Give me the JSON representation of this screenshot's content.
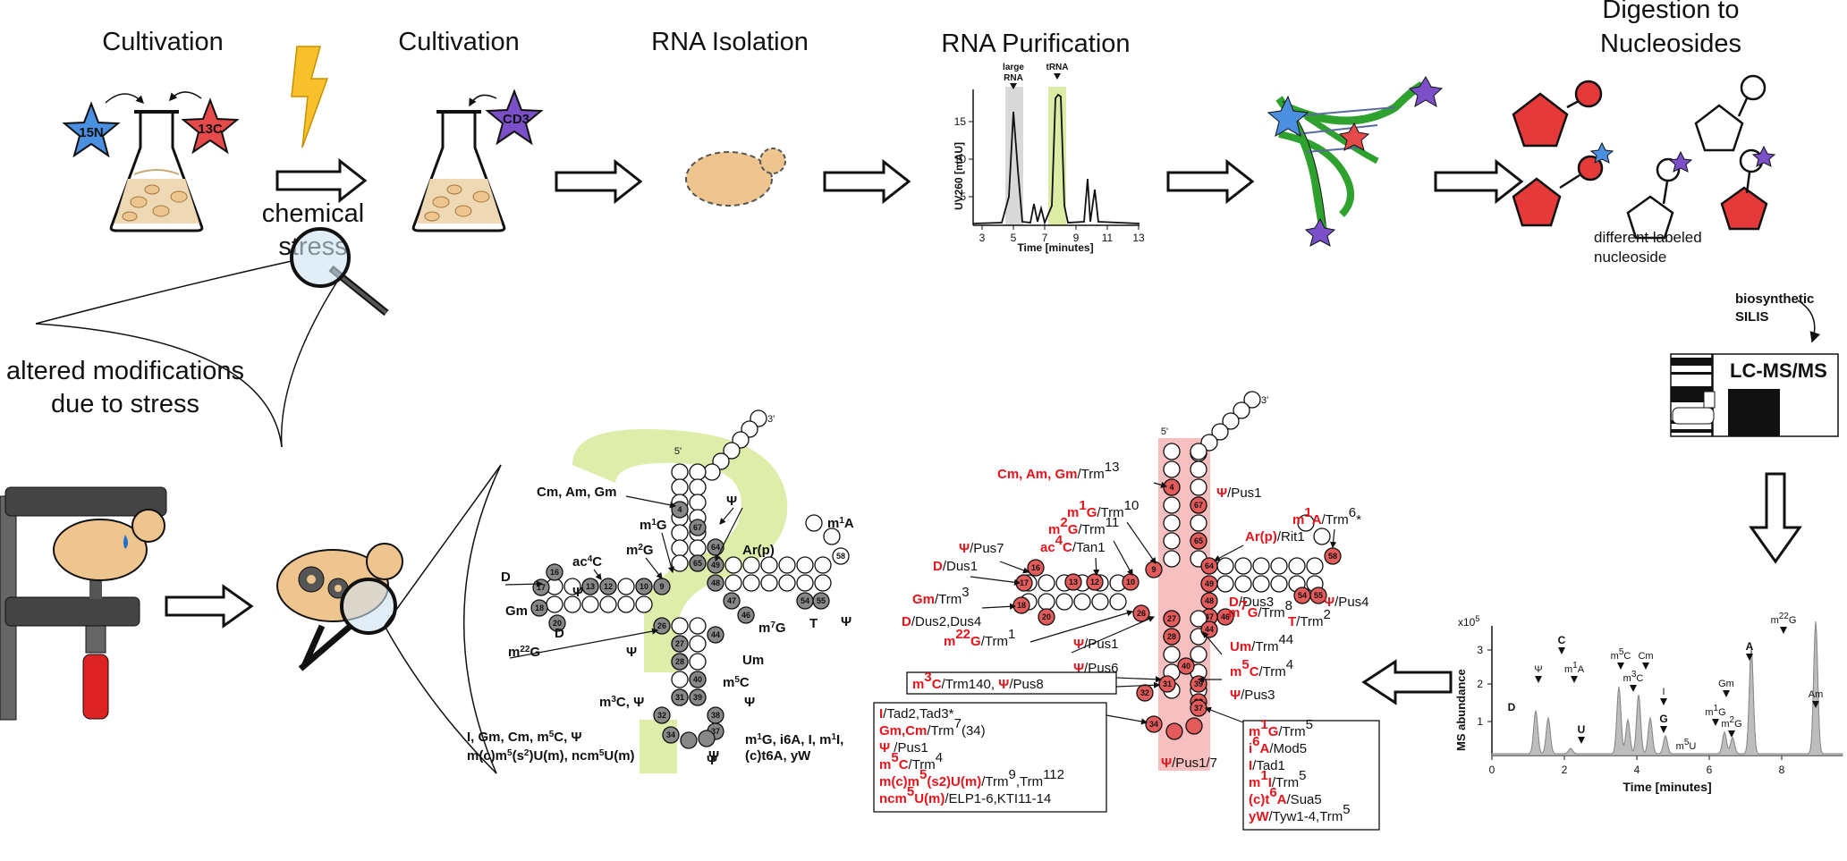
{
  "workflow": {
    "step1_title": "Cultivation",
    "step2_title": "Cultivation",
    "step3_title": "RNA Isolation",
    "step4_title": "RNA Purification",
    "step5_title_line1": "Digestion to",
    "step5_title_line2": "Nucleosides",
    "stress_line1": "chemical",
    "stress_line2": "stress",
    "isotope_n": "15N",
    "isotope_c": "13C",
    "isotope_cd3": "CD3",
    "altered_line1": "altered modifications",
    "altered_line2": "due to stress",
    "different_line1": "different labeled",
    "different_line2": "nucleoside",
    "silis_line1": "biosynthetic",
    "silis_line2": "SILIS",
    "lcms": "LC-MS/MS"
  },
  "purification_chart": {
    "ylabel": "UV260 [mAU]",
    "xlabel": "Time [minutes]",
    "xticks": [
      "3",
      "5",
      "7",
      "9",
      "11",
      "13"
    ],
    "yticks": [
      "5",
      "10",
      "15"
    ],
    "peak_large_label1": "large",
    "peak_large_label2": "RNA",
    "peak_trna_label": "tRNA"
  },
  "ms_chart": {
    "ylabel": "MS abundance",
    "xlabel": "Time [minutes]",
    "scale": "x10^5",
    "xticks": [
      "0",
      "2",
      "4",
      "6",
      "8"
    ],
    "yticks": [
      "1",
      "2",
      "3"
    ],
    "peaks": [
      "D",
      "Ψ",
      "C",
      "m1A",
      "U",
      "m5C",
      "m3C",
      "Cm",
      "I",
      "G",
      "m5U",
      "Gm",
      "m1G",
      "m2G",
      "A",
      "m22G",
      "Am"
    ]
  },
  "trna_left": {
    "labels": [
      "3'",
      "5'",
      "Cm, Am, Gm",
      "m1G",
      "m2G",
      "Ψ",
      "ac4C",
      "Ar(p)",
      "m1A",
      "D",
      "Gm",
      "Ψ",
      "D",
      "m7G",
      "T",
      "Ψ",
      "m22G",
      "Ψ",
      "Um",
      "m5C",
      "Ψ",
      "m3C, Ψ",
      "Ψ",
      "I, Gm, Cm, m5C, Ψ",
      "m(c)m5(s2)U(m), ncm5U(m)",
      "Ψ",
      "m1G, i6A, I, m1I,",
      "(c)t6A, yW"
    ],
    "numbers": [
      "4",
      "67",
      "65",
      "9",
      "10",
      "12",
      "13",
      "16",
      "17",
      "18",
      "20",
      "64",
      "49",
      "48",
      "47",
      "46",
      "54",
      "55",
      "58",
      "26",
      "27",
      "28",
      "44",
      "40",
      "39",
      "38",
      "37",
      "31",
      "32",
      "34"
    ]
  },
  "trna_right": {
    "entries": [
      {
        "red": "Cm, Am, Gm",
        "black": "/Trm13"
      },
      {
        "red": "Ψ",
        "black": "/Pus1"
      },
      {
        "red": "m1G",
        "black": "/Trm10"
      },
      {
        "red": "m2G",
        "black": "/Trm11"
      },
      {
        "red": "ac4C",
        "black": "/Tan1"
      },
      {
        "red": "Ψ",
        "black": "/Pus7"
      },
      {
        "red": "D",
        "black": "/Dus1"
      },
      {
        "red": "m1A",
        "black": "/Trm6*"
      },
      {
        "red": "Ar(p)",
        "black": "/Rit1"
      },
      {
        "red": "Gm",
        "black": "/Trm3"
      },
      {
        "red": "D",
        "black": "/Dus2,Dus4"
      },
      {
        "red": "D",
        "black": "/Dus3"
      },
      {
        "red": "m7G",
        "black": "/Trm8"
      },
      {
        "red": "Ψ",
        "black": "/Pus4"
      },
      {
        "red": "T",
        "black": "/Trm2"
      },
      {
        "red": "m22G",
        "black": "/Trm1"
      },
      {
        "red": "Ψ",
        "black": "/Pus1"
      },
      {
        "red": "Um",
        "black": "/Trm44"
      },
      {
        "red": "Ψ",
        "black": "/Pus6"
      },
      {
        "red": "m5C",
        "black": "/Trm4"
      },
      {
        "red": "Ψ",
        "black": "/Pus3"
      },
      {
        "red": "Ψ",
        "black": "/Pus1/7"
      }
    ],
    "box1": {
      "red1": "m3C",
      "black1": "/Trm140, ",
      "red2": "Ψ",
      "black2": "/Pus8"
    },
    "box2": [
      {
        "red": "I",
        "black": "/Tad2,Tad3*"
      },
      {
        "red": "Gm,Cm",
        "black": "/Trm7(34)"
      },
      {
        "red": "Ψ",
        "black": " /Pus1"
      },
      {
        "red": "m5C",
        "black": "/Trm4"
      },
      {
        "red": "m(c)m5(s2)U(m)",
        "black": "/Trm9,Trm112"
      },
      {
        "red": "ncm5U(m)",
        "black": "/ELP1-6,KTI11-14"
      }
    ],
    "box3": [
      {
        "red": "m1G",
        "black": "/Trm5"
      },
      {
        "red": "i6A",
        "black": "/Mod5"
      },
      {
        "red": "I",
        "black": "/Tad1"
      },
      {
        "red": "m1I",
        "black": "/Trm5"
      },
      {
        "red": "(c)t6A",
        "black": "/Sua5"
      },
      {
        "red": "yW",
        "black": "/Tyw1-4,Trm5"
      }
    ]
  },
  "colors": {
    "blue_star": "#4a8fe0",
    "red_star": "#e64a4a",
    "purple_star": "#7a4fc7",
    "cell": "#efc58f",
    "lightning": "#f7c12b",
    "green_band": "#d8ea9a",
    "pink_band": "#f6b8b8",
    "nuc_red": "#e63a3a"
  }
}
